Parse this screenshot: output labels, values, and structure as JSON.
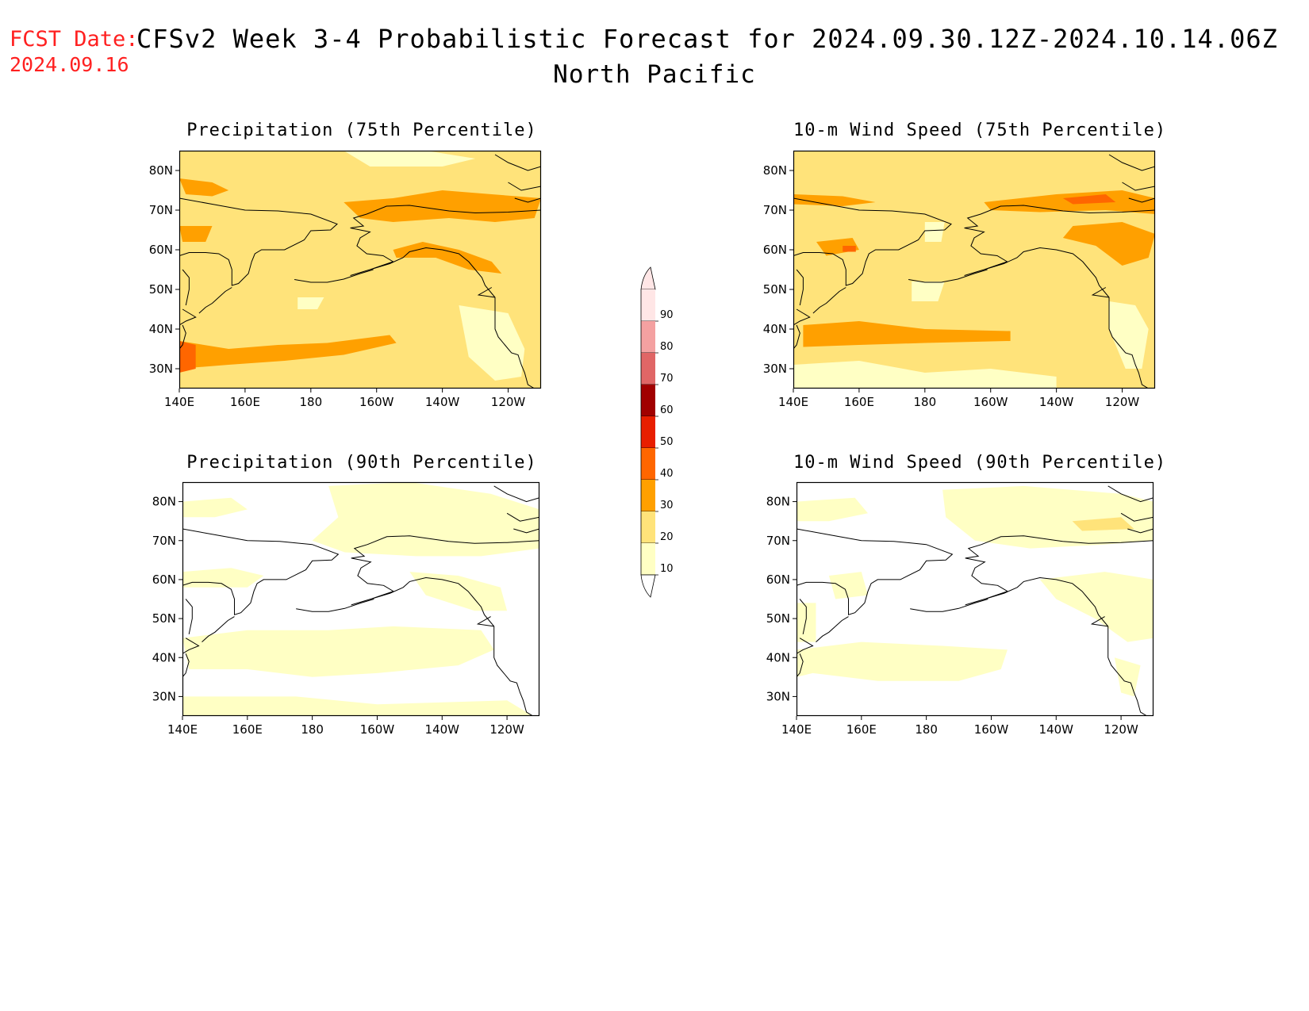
{
  "header": {
    "fcst_label": "FCST Date:",
    "fcst_date": "2024.09.16",
    "title": "CFSv2 Week 3-4 Probabilistic Forecast for 2024.09.30.12Z-2024.10.14.06Z",
    "region": "North Pacific"
  },
  "axes": {
    "lon_labels": [
      "140E",
      "160E",
      "180",
      "160W",
      "140W",
      "120W"
    ],
    "lat_labels": [
      "80N",
      "70N",
      "60N",
      "50N",
      "40N",
      "30N"
    ]
  },
  "panels": [
    {
      "title": "Precipitation (75th Percentile)",
      "dominant_category": 20,
      "pattern": "prcp75"
    },
    {
      "title": "10-m Wind Speed (75th Percentile)",
      "dominant_category": 20,
      "pattern": "wind75"
    },
    {
      "title": "Precipitation (90th Percentile)",
      "dominant_category": 10,
      "pattern": "prcp90"
    },
    {
      "title": "10-m Wind Speed (90th Percentile)",
      "dominant_category": 10,
      "pattern": "wind90"
    }
  ],
  "colorbar": {
    "labels": [
      "90",
      "80",
      "70",
      "60",
      "50",
      "40",
      "30",
      "20",
      "10"
    ],
    "colors": [
      "#ffe6e6",
      "#f4a1a1",
      "#e06666",
      "#a10000",
      "#e81e00",
      "#ff6600",
      "#ffa000",
      "#ffe37a",
      "#ffffc4"
    ]
  },
  "colors": {
    "title_red": "#ff2020",
    "cat_10": "#ffffc4",
    "cat_20": "#ffe37a",
    "cat_30": "#ffa000",
    "cat_40": "#ff6600",
    "cat_50": "#e81e00"
  }
}
